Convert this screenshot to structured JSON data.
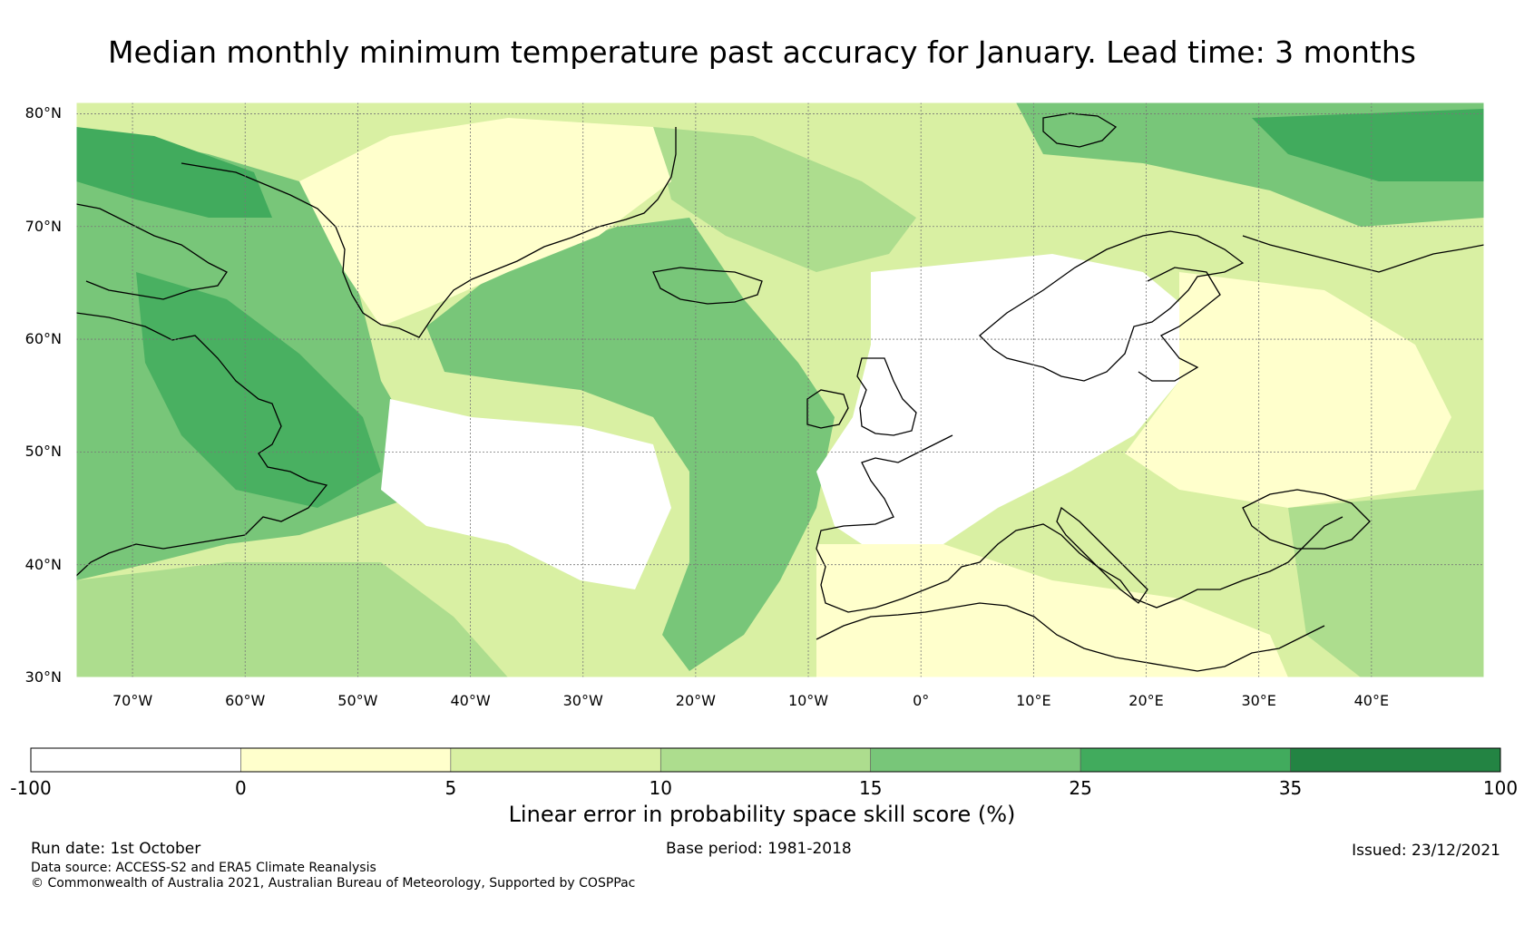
{
  "title": "Median monthly minimum temperature past accuracy for January. Lead time: 3 months",
  "map": {
    "lon_range": [
      -75,
      50
    ],
    "lat_range": [
      30,
      81
    ],
    "lat_labels": [
      "30°N",
      "40°N",
      "50°N",
      "60°N",
      "70°N",
      "80°N"
    ],
    "lon_labels": [
      "70°W",
      "60°W",
      "50°W",
      "40°W",
      "30°W",
      "20°W",
      "10°W",
      "0°",
      "10°E",
      "20°E",
      "30°E",
      "40°E"
    ]
  },
  "colorbar": {
    "bounds": [
      "-100",
      "0",
      "5",
      "10",
      "15",
      "25",
      "35",
      "100"
    ],
    "colors": [
      "#ffffff",
      "#ffffcc",
      "#d9f0a3",
      "#addd8e",
      "#78c679",
      "#41ab5d",
      "#238443"
    ],
    "label": "Linear error in probability space skill score (%)"
  },
  "footer": {
    "run_date": "Run date: 1st October",
    "data_source": "Data source: ACCESS-S2 and ERA5 Climate Reanalysis",
    "copyright": "© Commonwealth of Australia 2021, Australian Bureau of Meteorology, Supported by COSPPac",
    "base_period": "Base period: 1981-2018",
    "issued": "Issued: 23/12/2021"
  }
}
